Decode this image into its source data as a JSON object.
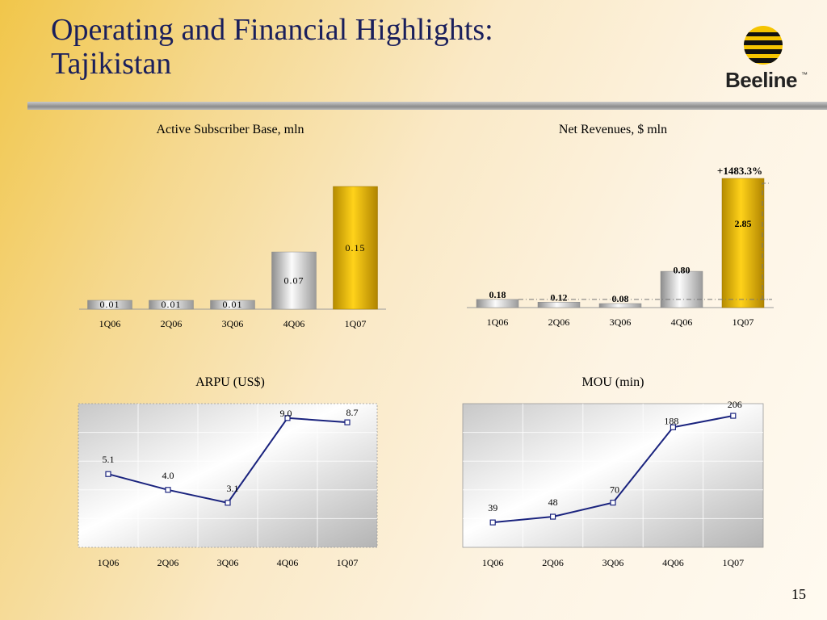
{
  "title": "Operating and Financial Highlights:\nTajikistan",
  "logo": {
    "name": "Beeline",
    "tm": "™"
  },
  "page_number": "15",
  "colors": {
    "title": "#1a1f5c",
    "gold": "#e8b800",
    "line": "#1a237e"
  },
  "chart_data": [
    {
      "type": "bar",
      "title": "Active Subscriber Base, mln",
      "categories": [
        "1Q06",
        "2Q06",
        "3Q06",
        "4Q06",
        "1Q07"
      ],
      "values": [
        0.01,
        0.01,
        0.01,
        0.07,
        0.15
      ],
      "labels": [
        "0.01",
        "0.01",
        "0.01",
        "0.07",
        "0.15"
      ],
      "highlight_index": 4
    },
    {
      "type": "bar",
      "title": "Net Revenues, $ mln",
      "categories": [
        "1Q06",
        "2Q06",
        "3Q06",
        "4Q06",
        "1Q07"
      ],
      "values": [
        0.18,
        0.12,
        0.08,
        0.8,
        2.85
      ],
      "labels": [
        "0.18",
        "0.12",
        "0.08",
        "0.80",
        "2.85"
      ],
      "highlight_index": 4,
      "annotation": "+1483.3%"
    },
    {
      "type": "line",
      "title": "ARPU (US$)",
      "categories": [
        "1Q06",
        "2Q06",
        "3Q06",
        "4Q06",
        "1Q07"
      ],
      "values": [
        5.1,
        4.0,
        3.1,
        9.0,
        8.7
      ],
      "labels": [
        "5.1",
        "4.0",
        "3.1",
        "9.0",
        "8.7"
      ],
      "ylim": [
        0,
        10
      ],
      "grid": true
    },
    {
      "type": "line",
      "title": "MOU (min)",
      "categories": [
        "1Q06",
        "2Q06",
        "3Q06",
        "4Q06",
        "1Q07"
      ],
      "values": [
        39,
        48,
        70,
        188,
        206
      ],
      "labels": [
        "39",
        "48",
        "70",
        "188",
        "206"
      ],
      "ylim": [
        0,
        225
      ],
      "grid": true
    }
  ]
}
